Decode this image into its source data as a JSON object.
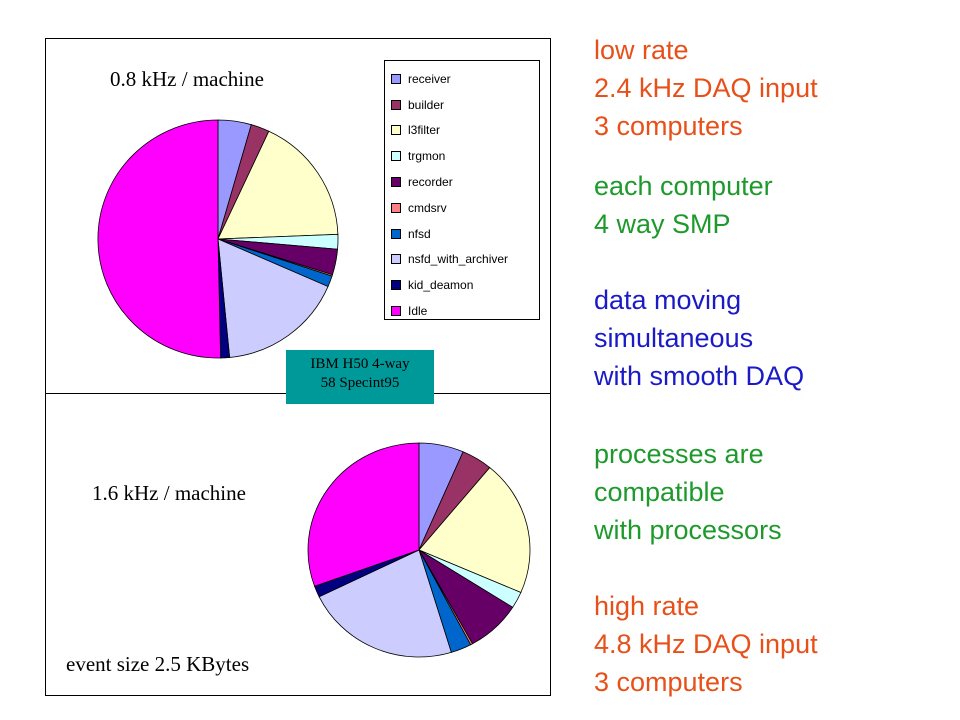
{
  "chart_data": [
    {
      "type": "pie",
      "title": "0.8 kHz / machine",
      "categories": [
        "receiver",
        "builder",
        "l3filter",
        "trgmon",
        "recorder",
        "cmdsrv",
        "nfsd",
        "nsfd_with_archiver",
        "kid_deamon",
        "Idle"
      ],
      "values": [
        4.5,
        2.5,
        17.5,
        2.0,
        3.5,
        0.2,
        1.5,
        17.0,
        1.2,
        50.6
      ]
    },
    {
      "type": "pie",
      "title": "1.6 kHz / machine",
      "categories": [
        "receiver",
        "builder",
        "l3filter",
        "trgmon",
        "recorder",
        "cmdsrv",
        "nfsd",
        "nsfd_with_archiver",
        "kid_deamon",
        "Idle"
      ],
      "values": [
        6.5,
        4.5,
        20.5,
        2.5,
        8.0,
        0.3,
        3.0,
        22.5,
        1.7,
        30.5
      ]
    }
  ],
  "legend": {
    "items": [
      {
        "label": "receiver",
        "color": "#9999ff"
      },
      {
        "label": "builder",
        "color": "#993366"
      },
      {
        "label": "l3filter",
        "color": "#ffffcc"
      },
      {
        "label": "trgmon",
        "color": "#ccffff"
      },
      {
        "label": "recorder",
        "color": "#660066"
      },
      {
        "label": "cmdsrv",
        "color": "#ff8080"
      },
      {
        "label": "nfsd",
        "color": "#0066cc"
      },
      {
        "label": "nsfd_with_archiver",
        "color": "#ccccff"
      },
      {
        "label": "kid_deamon",
        "color": "#000080"
      },
      {
        "label": "Idle",
        "color": "#ff00ff"
      }
    ]
  },
  "labels": {
    "rate_top": "0.8  kHz / machine",
    "rate_bottom": "1.6  kHz / machine",
    "event_size": "event size 2.5 KBytes",
    "machine_line1": "IBM H50 4-way",
    "machine_line2": "58 Specint95"
  },
  "notes": {
    "low_rate": [
      "low rate",
      "2.4 kHz DAQ input",
      "3 computers"
    ],
    "smp": [
      "each computer",
      "4 way SMP"
    ],
    "data_moving": [
      "data moving",
      "simultaneous",
      "with smooth DAQ"
    ],
    "processes": [
      "processes are",
      "compatible",
      "with processors"
    ],
    "high_rate": [
      "high rate",
      "4.8 kHz DAQ input",
      "3 computers"
    ]
  }
}
